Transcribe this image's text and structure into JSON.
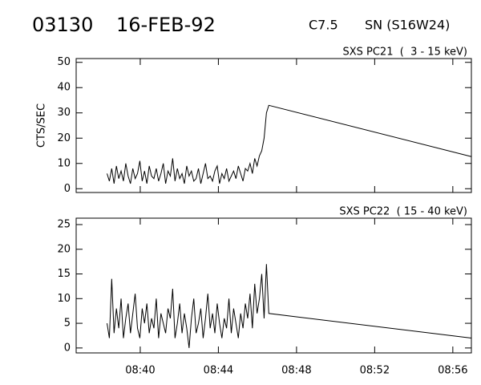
{
  "header": {
    "id": "03130",
    "date": "16-FEB-92",
    "class": "C7.5",
    "location": "SN (S16W24)"
  },
  "chart_data": [
    {
      "type": "line",
      "title": "SXS PC21  (  3 - 15 keV)",
      "y_label": "CTS/SEC",
      "color": "#000000",
      "x": [
        38.3,
        38.42,
        38.54,
        38.66,
        38.78,
        38.9,
        39.02,
        39.14,
        39.26,
        39.38,
        39.5,
        39.62,
        39.74,
        39.86,
        39.98,
        40.1,
        40.22,
        40.34,
        40.46,
        40.58,
        40.7,
        40.82,
        40.94,
        41.06,
        41.18,
        41.3,
        41.42,
        41.54,
        41.66,
        41.78,
        41.9,
        42.02,
        42.14,
        42.26,
        42.38,
        42.5,
        42.62,
        42.74,
        42.86,
        42.98,
        43.1,
        43.22,
        43.34,
        43.46,
        43.58,
        43.7,
        43.82,
        43.94,
        44.06,
        44.18,
        44.3,
        44.42,
        44.54,
        44.66,
        44.78,
        44.9,
        45.02,
        45.14,
        45.26,
        45.38,
        45.5,
        45.62,
        45.74,
        45.86,
        45.98,
        46.1,
        46.22,
        46.34,
        46.46,
        46.58,
        56.95
      ],
      "values": [
        6,
        3,
        8,
        2,
        9,
        4,
        7,
        3,
        10,
        5,
        2,
        8,
        4,
        6,
        11,
        3,
        7,
        2,
        9,
        5,
        4,
        8,
        3,
        6,
        10,
        2,
        7,
        5,
        12,
        3,
        8,
        4,
        6,
        2,
        9,
        5,
        7,
        3,
        4,
        8,
        2,
        6,
        10,
        4,
        5,
        3,
        7,
        9,
        2,
        6,
        4,
        8,
        3,
        5,
        7,
        4,
        9,
        6,
        3,
        8,
        7,
        10,
        6,
        12,
        9,
        13,
        15,
        20,
        30,
        33,
        12.7
      ],
      "xlim": [
        36.72,
        56.95
      ],
      "ylim": [
        -1.5,
        51.5
      ],
      "yticks": [
        0,
        10,
        20,
        30,
        40,
        50
      ]
    },
    {
      "type": "line",
      "title": "SXS PC22  ( 15 - 40 keV)",
      "color": "#000000",
      "x": [
        38.3,
        38.42,
        38.54,
        38.66,
        38.78,
        38.9,
        39.02,
        39.14,
        39.26,
        39.38,
        39.5,
        39.62,
        39.74,
        39.86,
        39.98,
        40.1,
        40.22,
        40.34,
        40.46,
        40.58,
        40.7,
        40.82,
        40.94,
        41.06,
        41.18,
        41.3,
        41.42,
        41.54,
        41.66,
        41.78,
        41.9,
        42.02,
        42.14,
        42.26,
        42.38,
        42.5,
        42.62,
        42.74,
        42.86,
        42.98,
        43.1,
        43.22,
        43.34,
        43.46,
        43.58,
        43.7,
        43.82,
        43.94,
        44.06,
        44.18,
        44.3,
        44.42,
        44.54,
        44.66,
        44.78,
        44.9,
        45.02,
        45.14,
        45.26,
        45.38,
        45.5,
        45.62,
        45.74,
        45.86,
        45.98,
        46.1,
        46.22,
        46.34,
        46.46,
        46.58,
        56.95
      ],
      "values": [
        5,
        2,
        14,
        3,
        8,
        4,
        10,
        2,
        6,
        9,
        3,
        7,
        11,
        4,
        2,
        8,
        5,
        9,
        3,
        6,
        4,
        10,
        2,
        7,
        5,
        3,
        8,
        6,
        12,
        2,
        5,
        9,
        3,
        7,
        4,
        0,
        6,
        10,
        3,
        5,
        8,
        2,
        6,
        11,
        4,
        7,
        3,
        9,
        5,
        2,
        6,
        4,
        10,
        3,
        8,
        5,
        2,
        7,
        4,
        9,
        6,
        11,
        4,
        13,
        7,
        10,
        15,
        6,
        17,
        7,
        2
      ],
      "xlim": [
        36.72,
        56.95
      ],
      "ylim": [
        -1,
        26.3
      ],
      "yticks": [
        0,
        5,
        10,
        15,
        20,
        25
      ],
      "xticks": [
        {
          "value": 40,
          "label": "08:40"
        },
        {
          "value": 44,
          "label": "08:44"
        },
        {
          "value": 48,
          "label": "08:48"
        },
        {
          "value": 52,
          "label": "08:52"
        },
        {
          "value": 56,
          "label": "08:56"
        }
      ]
    }
  ]
}
